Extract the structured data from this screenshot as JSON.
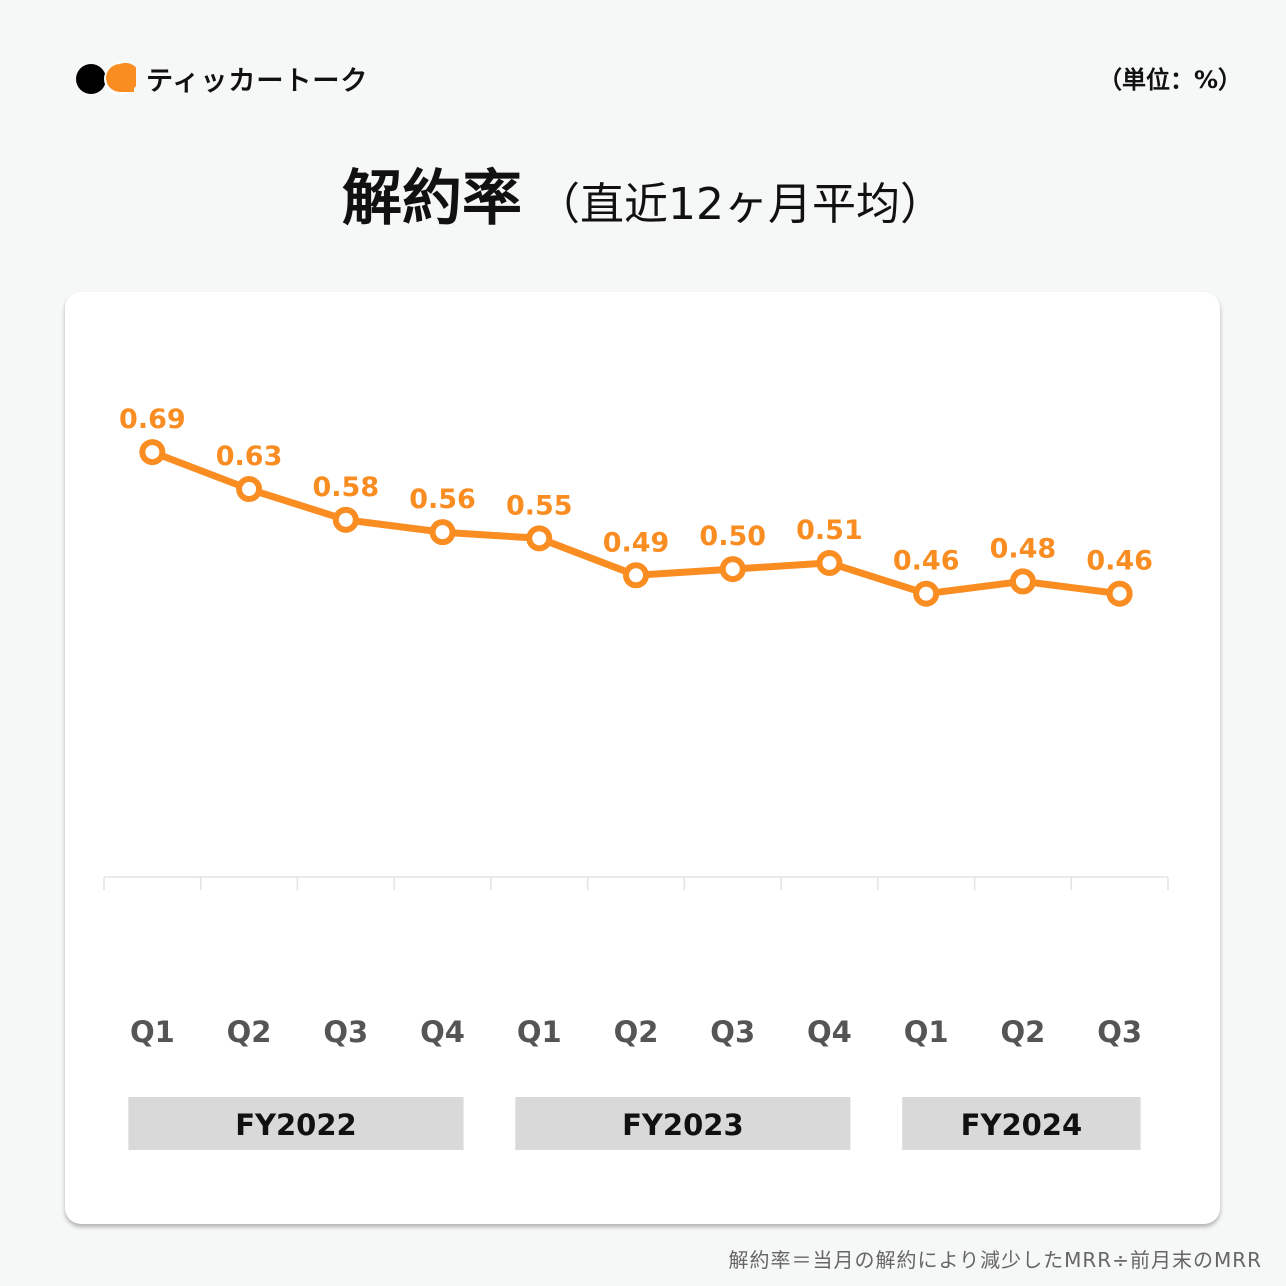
{
  "brand": {
    "name": "ティッカートーク",
    "logo_icon": "speech-bubbles-logo-icon",
    "colors": {
      "dark": "#000000",
      "accent": "#f98d22"
    }
  },
  "unit_label": "（単位：%）",
  "title": {
    "main": "解約率",
    "sub": "（直近12ヶ月平均）"
  },
  "footnote": "解約率＝当月の解約により減少したMRR÷前月末のMRR",
  "chart_data": {
    "type": "line",
    "title": "解約率（直近12ヶ月平均）",
    "xlabel": "",
    "ylabel": "",
    "unit": "%",
    "categories": [
      "Q1",
      "Q2",
      "Q3",
      "Q4",
      "Q1",
      "Q2",
      "Q3",
      "Q4",
      "Q1",
      "Q2",
      "Q3"
    ],
    "series": [
      {
        "name": "解約率",
        "values": [
          0.69,
          0.63,
          0.58,
          0.56,
          0.55,
          0.49,
          0.5,
          0.51,
          0.46,
          0.48,
          0.46
        ],
        "color": "#f98d22"
      }
    ],
    "data_labels": [
      "0.69",
      "0.63",
      "0.58",
      "0.56",
      "0.55",
      "0.49",
      "0.50",
      "0.51",
      "0.46",
      "0.48",
      "0.46"
    ],
    "groups": [
      {
        "label": "FY2022",
        "start": 0,
        "end": 3
      },
      {
        "label": "FY2023",
        "start": 4,
        "end": 7
      },
      {
        "label": "FY2024",
        "start": 8,
        "end": 10
      }
    ],
    "ylim": [
      0,
      0.95
    ],
    "grid": false,
    "legend": "none"
  }
}
